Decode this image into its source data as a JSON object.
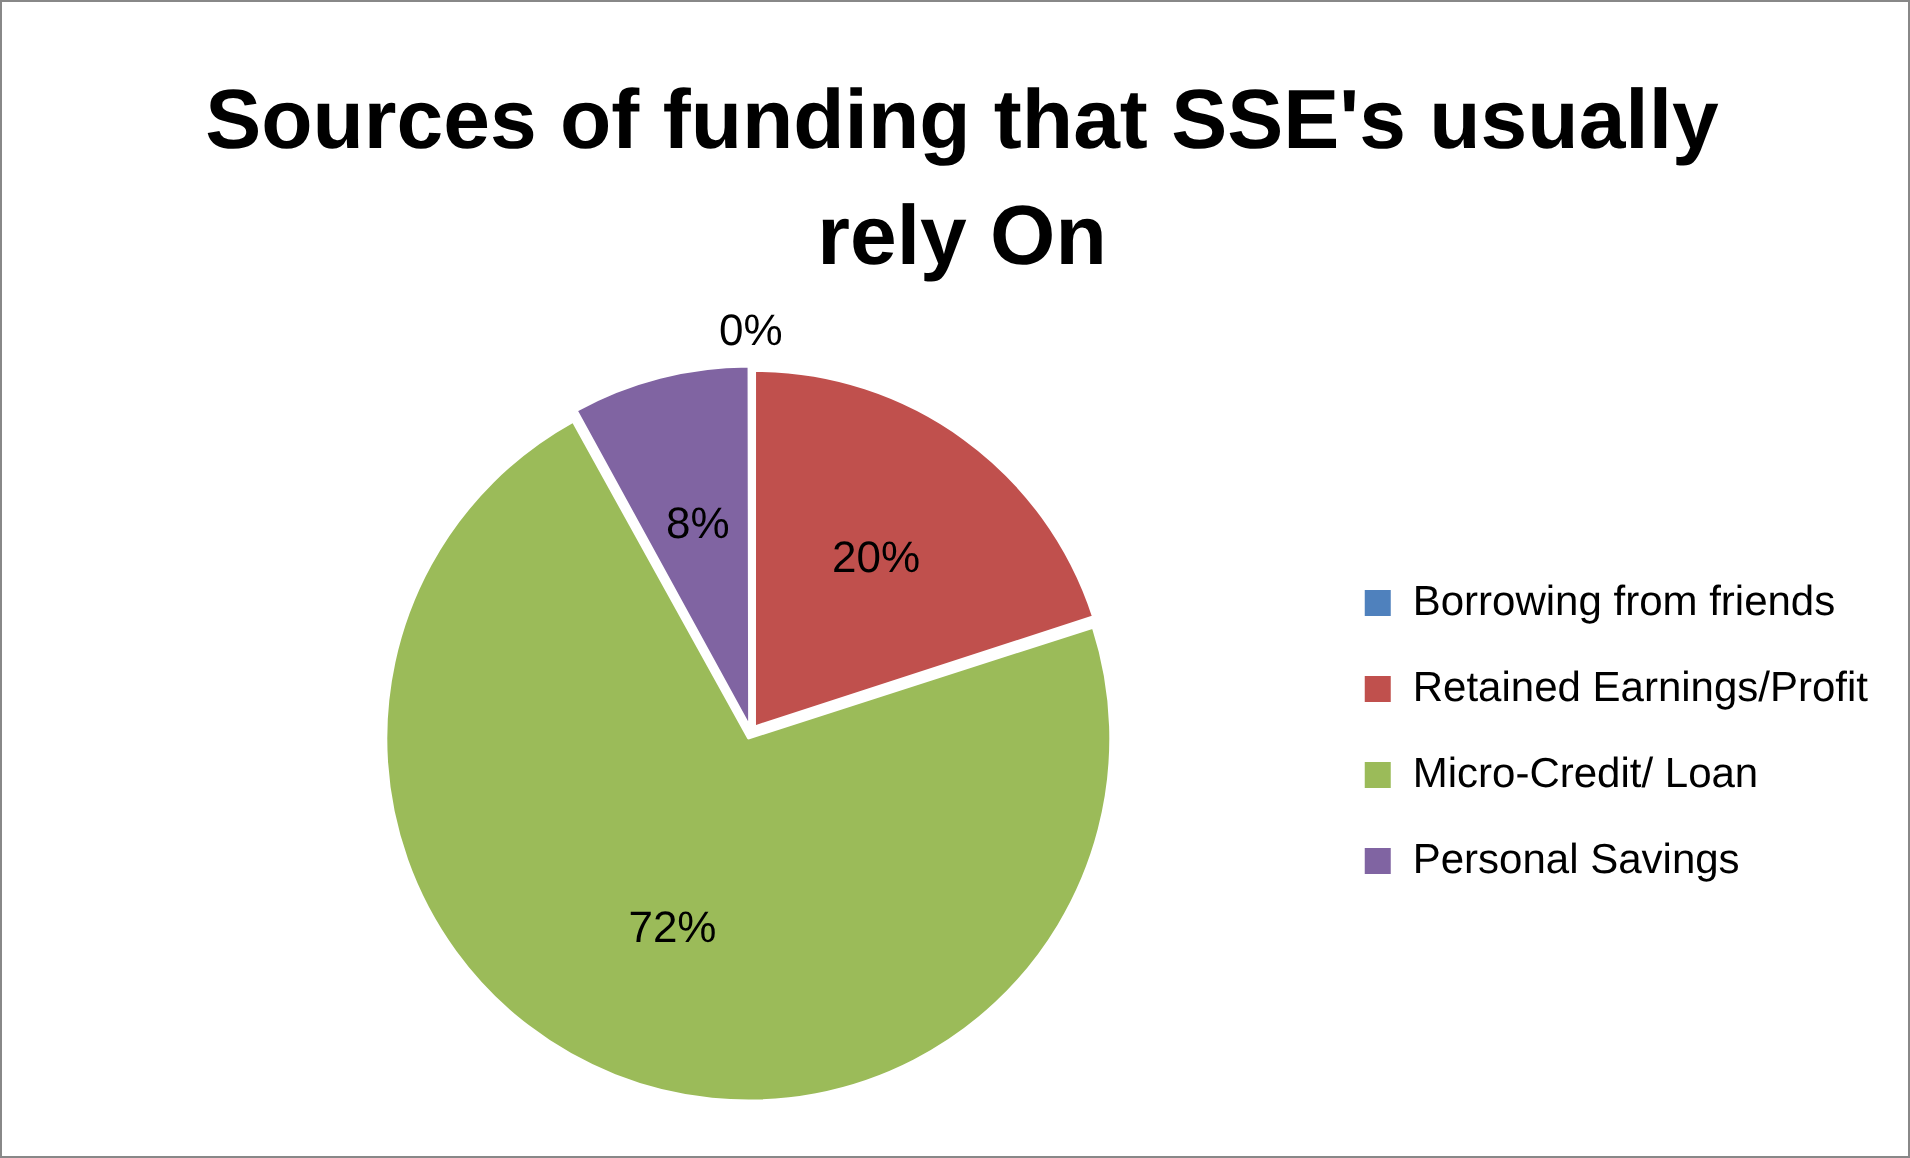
{
  "chart_data": {
    "type": "pie",
    "title": "Sources of funding that SSE's usually rely On",
    "categories": [
      "Borrowing from friends",
      "Retained Earnings/Profit",
      "Micro-Credit/ Loan",
      "Personal Savings"
    ],
    "values": [
      0,
      20,
      72,
      8
    ],
    "colors": [
      "#4f81bd",
      "#c0504d",
      "#9bbb59",
      "#8064a2"
    ],
    "value_labels": [
      "0%",
      "20%",
      "72%",
      "8%"
    ],
    "legend": "right"
  }
}
